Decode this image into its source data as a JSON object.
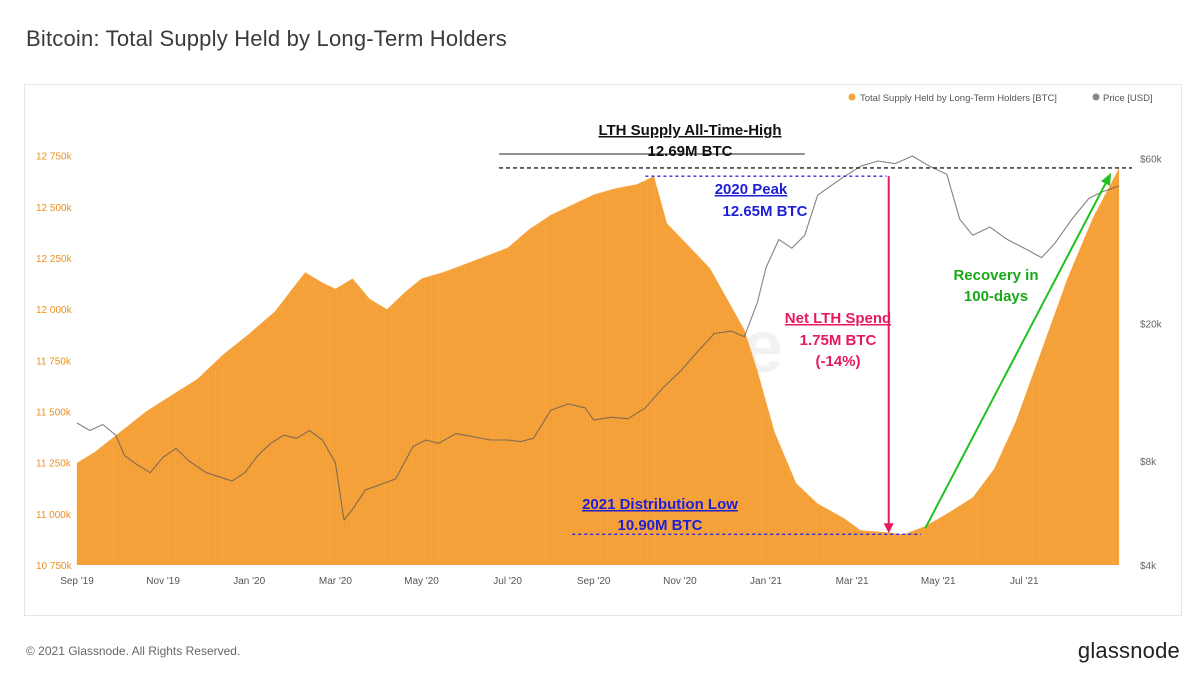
{
  "page": {
    "title": "Bitcoin: Total Supply Held by Long-Term Holders",
    "copyright": "© 2021 Glassnode. All Rights Reserved.",
    "brand": "glassnode",
    "watermark": "glassnode"
  },
  "colors": {
    "supply": "#f7a33c",
    "price": "#888888",
    "ath_line": "#222222",
    "peak_line": "#2a2ae0",
    "low_line": "#2a2ae0",
    "spend": "#e8195a",
    "recovery": "#1ec21e",
    "left_ticks": "#e8901f",
    "right_ticks": "#666666"
  },
  "chart_data": {
    "type": "area",
    "title": "Bitcoin: Total Supply Held by Long-Term Holders",
    "legend": [
      {
        "label": "Total Supply Held by Long-Term Holders [BTC]",
        "color": "#f7a33c"
      },
      {
        "label": "Price [USD]",
        "color": "#888888"
      }
    ],
    "legend_position": "top-right",
    "x_range": [
      0,
      24.5
    ],
    "x_ticks": [
      {
        "t": 0,
        "label": "Sep '19"
      },
      {
        "t": 2,
        "label": "Nov '19"
      },
      {
        "t": 4,
        "label": "Jan '20"
      },
      {
        "t": 6,
        "label": "Mar '20"
      },
      {
        "t": 8,
        "label": "May '20"
      },
      {
        "t": 10,
        "label": "Jul '20"
      },
      {
        "t": 12,
        "label": "Sep '20"
      },
      {
        "t": 14,
        "label": "Nov '20"
      },
      {
        "t": 16,
        "label": "Jan '21"
      },
      {
        "t": 18,
        "label": "Mar '21"
      },
      {
        "t": 20,
        "label": "May '21"
      },
      {
        "t": 22,
        "label": "Jul '21"
      }
    ],
    "y_left": {
      "range": [
        10750,
        12900
      ],
      "ticks": [
        {
          "v": 10750,
          "label": "10 750k"
        },
        {
          "v": 11000,
          "label": "11 000k"
        },
        {
          "v": 11250,
          "label": "11 250k"
        },
        {
          "v": 11500,
          "label": "11 500k"
        },
        {
          "v": 11750,
          "label": "11 750k"
        },
        {
          "v": 12000,
          "label": "12 000k"
        },
        {
          "v": 12250,
          "label": "12 250k"
        },
        {
          "v": 12500,
          "label": "12 500k"
        },
        {
          "v": 12750,
          "label": "12 750k"
        }
      ]
    },
    "y_right": {
      "scale": "log",
      "range": [
        4000,
        75000
      ],
      "ticks": [
        {
          "v": 4000,
          "label": "$4k"
        },
        {
          "v": 8000,
          "label": "$8k"
        },
        {
          "v": 20000,
          "label": "$20k"
        },
        {
          "v": 60000,
          "label": "$60k"
        }
      ]
    },
    "series": [
      {
        "name": "Total Supply Held by Long-Term Holders [BTC]",
        "axis": "left",
        "points": [
          [
            0,
            11250
          ],
          [
            0.4,
            11300
          ],
          [
            1,
            11400
          ],
          [
            1.6,
            11500
          ],
          [
            2.2,
            11580
          ],
          [
            2.8,
            11660
          ],
          [
            3.4,
            11780
          ],
          [
            4,
            11880
          ],
          [
            4.6,
            11990
          ],
          [
            5,
            12100
          ],
          [
            5.3,
            12180
          ],
          [
            5.7,
            12130
          ],
          [
            6,
            12100
          ],
          [
            6.4,
            12150
          ],
          [
            6.8,
            12050
          ],
          [
            7.2,
            12000
          ],
          [
            7.6,
            12080
          ],
          [
            8,
            12150
          ],
          [
            8.5,
            12180
          ],
          [
            9,
            12220
          ],
          [
            9.5,
            12260
          ],
          [
            10,
            12300
          ],
          [
            10.5,
            12390
          ],
          [
            11,
            12460
          ],
          [
            11.5,
            12510
          ],
          [
            12,
            12560
          ],
          [
            12.5,
            12590
          ],
          [
            13,
            12610
          ],
          [
            13.4,
            12650
          ],
          [
            13.7,
            12420
          ],
          [
            14.2,
            12310
          ],
          [
            14.7,
            12200
          ],
          [
            15.1,
            12050
          ],
          [
            15.5,
            11900
          ],
          [
            15.8,
            11700
          ],
          [
            16.2,
            11400
          ],
          [
            16.7,
            11150
          ],
          [
            17.2,
            11050
          ],
          [
            17.8,
            10980
          ],
          [
            18.2,
            10920
          ],
          [
            18.8,
            10910
          ],
          [
            19.2,
            10900
          ],
          [
            19.7,
            10940
          ],
          [
            20.2,
            11000
          ],
          [
            20.8,
            11080
          ],
          [
            21.3,
            11220
          ],
          [
            21.8,
            11450
          ],
          [
            22.4,
            11800
          ],
          [
            23,
            12150
          ],
          [
            23.6,
            12450
          ],
          [
            24.2,
            12690
          ]
        ]
      },
      {
        "name": "Price [USD]",
        "axis": "right",
        "points": [
          [
            0,
            10300
          ],
          [
            0.3,
            9800
          ],
          [
            0.6,
            10200
          ],
          [
            0.9,
            9500
          ],
          [
            1.1,
            8300
          ],
          [
            1.4,
            7800
          ],
          [
            1.7,
            7400
          ],
          [
            2,
            8200
          ],
          [
            2.3,
            8700
          ],
          [
            2.6,
            8000
          ],
          [
            3,
            7400
          ],
          [
            3.3,
            7200
          ],
          [
            3.6,
            7000
          ],
          [
            3.9,
            7400
          ],
          [
            4.2,
            8300
          ],
          [
            4.5,
            9000
          ],
          [
            4.8,
            9500
          ],
          [
            5.1,
            9300
          ],
          [
            5.4,
            9800
          ],
          [
            5.7,
            9200
          ],
          [
            6,
            7900
          ],
          [
            6.2,
            5400
          ],
          [
            6.4,
            5800
          ],
          [
            6.7,
            6600
          ],
          [
            7,
            6800
          ],
          [
            7.4,
            7100
          ],
          [
            7.8,
            8800
          ],
          [
            8.1,
            9200
          ],
          [
            8.4,
            9000
          ],
          [
            8.8,
            9600
          ],
          [
            9.2,
            9400
          ],
          [
            9.6,
            9200
          ],
          [
            10,
            9200
          ],
          [
            10.3,
            9100
          ],
          [
            10.6,
            9300
          ],
          [
            11,
            11200
          ],
          [
            11.4,
            11700
          ],
          [
            11.8,
            11400
          ],
          [
            12,
            10500
          ],
          [
            12.4,
            10700
          ],
          [
            12.8,
            10600
          ],
          [
            13.2,
            11400
          ],
          [
            13.6,
            13000
          ],
          [
            14,
            14500
          ],
          [
            14.4,
            16500
          ],
          [
            14.8,
            18700
          ],
          [
            15.2,
            19000
          ],
          [
            15.5,
            18300
          ],
          [
            15.8,
            23000
          ],
          [
            16,
            29000
          ],
          [
            16.3,
            35000
          ],
          [
            16.6,
            33000
          ],
          [
            16.9,
            36000
          ],
          [
            17.2,
            47000
          ],
          [
            17.5,
            50000
          ],
          [
            17.8,
            53000
          ],
          [
            18.2,
            57000
          ],
          [
            18.6,
            59000
          ],
          [
            19,
            58000
          ],
          [
            19.4,
            61000
          ],
          [
            19.8,
            57000
          ],
          [
            20.2,
            54000
          ],
          [
            20.5,
            40000
          ],
          [
            20.8,
            36000
          ],
          [
            21.2,
            38000
          ],
          [
            21.6,
            35000
          ],
          [
            22,
            33000
          ],
          [
            22.4,
            31000
          ],
          [
            22.7,
            34000
          ],
          [
            23.1,
            40000
          ],
          [
            23.5,
            46000
          ],
          [
            23.8,
            48000
          ],
          [
            24.2,
            50000
          ]
        ]
      }
    ],
    "annotations": [
      {
        "id": "ath",
        "title": "LTH Supply All-Time-High",
        "value": "12.69M BTC",
        "level": 12690
      },
      {
        "id": "peak",
        "title": "2020 Peak",
        "value": "12.65M BTC",
        "level": 12650
      },
      {
        "id": "low",
        "title": "2021 Distribution Low",
        "value": "10.90M BTC",
        "level": 10900
      },
      {
        "id": "spend",
        "title": "Net LTH Spend",
        "value": "1.75M BTC",
        "pct": "(-14%)"
      },
      {
        "id": "recovery",
        "title": "Recovery in",
        "value": "100-days"
      }
    ]
  }
}
